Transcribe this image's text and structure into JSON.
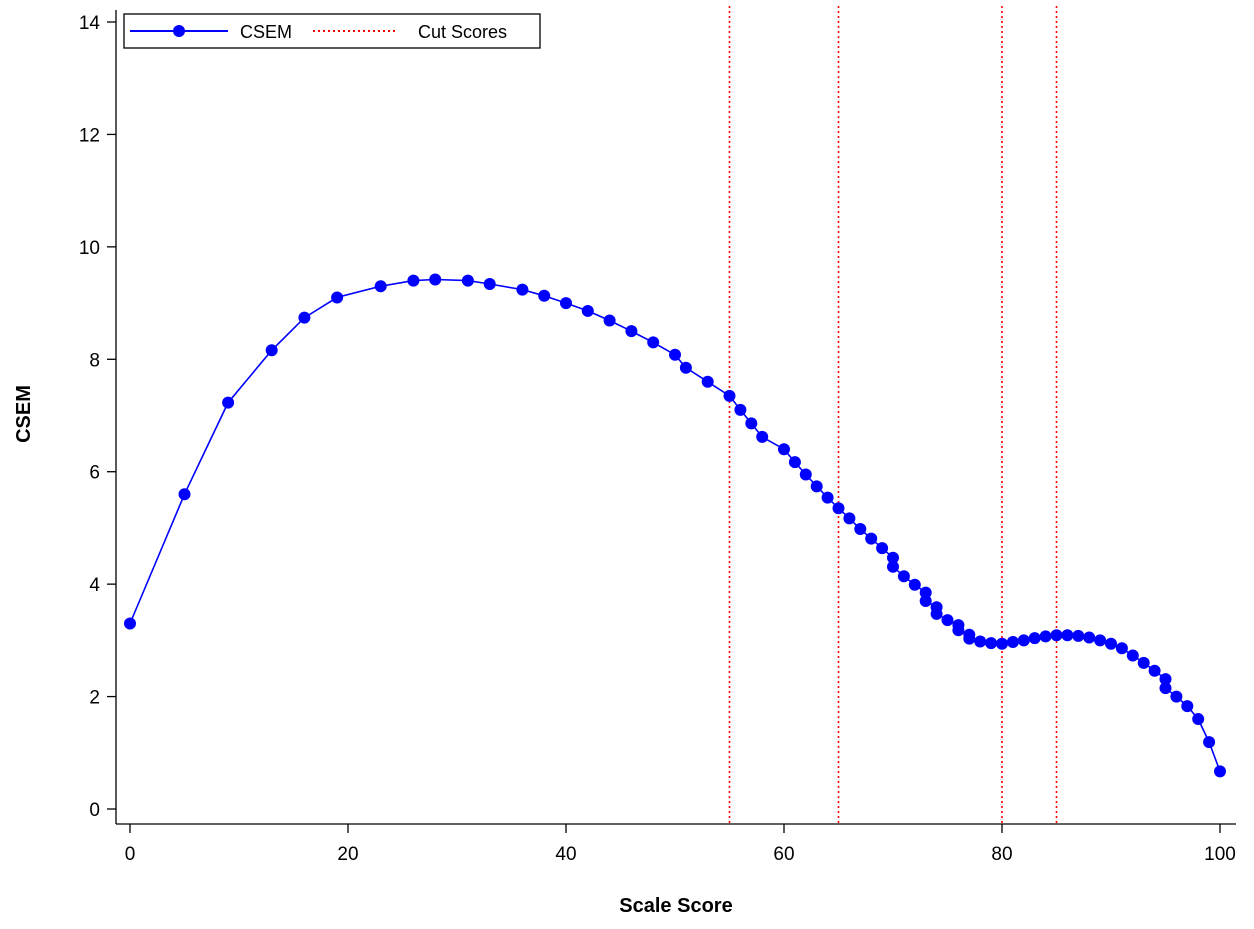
{
  "chart_data": {
    "type": "line",
    "xlabel": "Scale Score",
    "ylabel": "CSEM",
    "xlim": [
      0,
      100
    ],
    "ylim": [
      0,
      14
    ],
    "x_ticks": [
      0,
      20,
      40,
      60,
      80,
      100
    ],
    "y_ticks": [
      0,
      2,
      4,
      6,
      8,
      10,
      12,
      14
    ],
    "grid": false,
    "legend_position": "top-left",
    "legend": {
      "csem_label": "CSEM",
      "cut_label": "Cut Scores"
    },
    "series": [
      {
        "name": "CSEM",
        "color": "#0000ff",
        "marker": "circle",
        "points": [
          [
            0,
            3.3
          ],
          [
            5,
            5.6
          ],
          [
            9,
            7.23
          ],
          [
            13,
            8.16
          ],
          [
            16,
            8.74
          ],
          [
            19,
            9.1
          ],
          [
            23,
            9.3
          ],
          [
            26,
            9.4
          ],
          [
            28,
            9.42
          ],
          [
            31,
            9.4
          ],
          [
            33,
            9.34
          ],
          [
            36,
            9.24
          ],
          [
            38,
            9.13
          ],
          [
            40,
            9.0
          ],
          [
            42,
            8.86
          ],
          [
            44,
            8.69
          ],
          [
            46,
            8.5
          ],
          [
            48,
            8.3
          ],
          [
            50,
            8.08
          ],
          [
            51,
            7.85
          ],
          [
            53,
            7.6
          ],
          [
            55,
            7.35
          ],
          [
            56,
            7.1
          ],
          [
            57,
            6.86
          ],
          [
            58,
            6.62
          ],
          [
            60,
            6.4
          ],
          [
            61,
            6.17
          ],
          [
            62,
            5.95
          ],
          [
            63,
            5.74
          ],
          [
            64,
            5.54
          ],
          [
            65,
            5.35
          ],
          [
            66,
            5.17
          ],
          [
            67,
            4.98
          ],
          [
            68,
            4.81
          ],
          [
            69,
            4.64
          ],
          [
            70,
            4.47
          ],
          [
            70,
            4.31
          ],
          [
            71,
            4.14
          ],
          [
            72,
            3.99
          ],
          [
            73,
            3.85
          ],
          [
            73,
            3.7
          ],
          [
            74,
            3.59
          ],
          [
            74,
            3.47
          ],
          [
            75,
            3.36
          ],
          [
            76,
            3.27
          ],
          [
            76,
            3.18
          ],
          [
            77,
            3.1
          ],
          [
            77,
            3.03
          ],
          [
            78,
            2.98
          ],
          [
            79,
            2.95
          ],
          [
            80,
            2.94
          ],
          [
            81,
            2.97
          ],
          [
            82,
            3.0
          ],
          [
            83,
            3.04
          ],
          [
            84,
            3.07
          ],
          [
            85,
            3.09
          ],
          [
            86,
            3.09
          ],
          [
            87,
            3.08
          ],
          [
            88,
            3.05
          ],
          [
            89,
            3.0
          ],
          [
            90,
            2.94
          ],
          [
            91,
            2.86
          ],
          [
            92,
            2.73
          ],
          [
            93,
            2.6
          ],
          [
            94,
            2.46
          ],
          [
            95,
            2.31
          ],
          [
            95,
            2.15
          ],
          [
            96,
            2.0
          ],
          [
            97,
            1.83
          ],
          [
            98,
            1.6
          ],
          [
            99,
            1.19
          ],
          [
            100,
            0.67
          ]
        ]
      }
    ],
    "cut_scores": {
      "name": "Cut Scores",
      "color": "#ff0000",
      "values": [
        55,
        65,
        80,
        85
      ]
    }
  }
}
